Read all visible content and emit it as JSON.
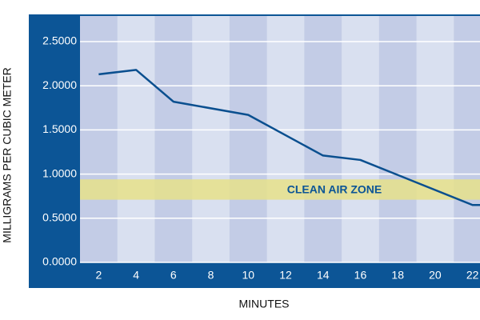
{
  "chart_data": {
    "type": "line",
    "x_label": "MINUTES",
    "y_label": "MILLIGRAMS PER CUBIC METER",
    "x": [
      2,
      4,
      6,
      10,
      14,
      16,
      22,
      22.4
    ],
    "values": [
      2.13,
      2.18,
      1.82,
      1.67,
      1.21,
      1.16,
      0.65,
      0.65
    ],
    "color": "#0a4f8f",
    "xlim": [
      1,
      22.4
    ],
    "xticks": [
      2,
      4,
      6,
      8,
      10,
      12,
      14,
      16,
      18,
      20,
      22
    ],
    "ylim": [
      0,
      2.79
    ],
    "yticks": [
      {
        "value": 0,
        "label": "0.0000"
      },
      {
        "value": 0.5,
        "label": "0.5000"
      },
      {
        "value": 1,
        "label": "1.0000"
      },
      {
        "value": 1.5,
        "label": "1.5000"
      },
      {
        "value": 2,
        "label": "2.0000"
      },
      {
        "value": 2.5,
        "label": "2.5000"
      }
    ],
    "grid": true,
    "zone": {
      "label": "CLEAN AIR ZONE",
      "range": [
        0.71,
        0.94
      ],
      "color": "#e6e08a"
    }
  }
}
